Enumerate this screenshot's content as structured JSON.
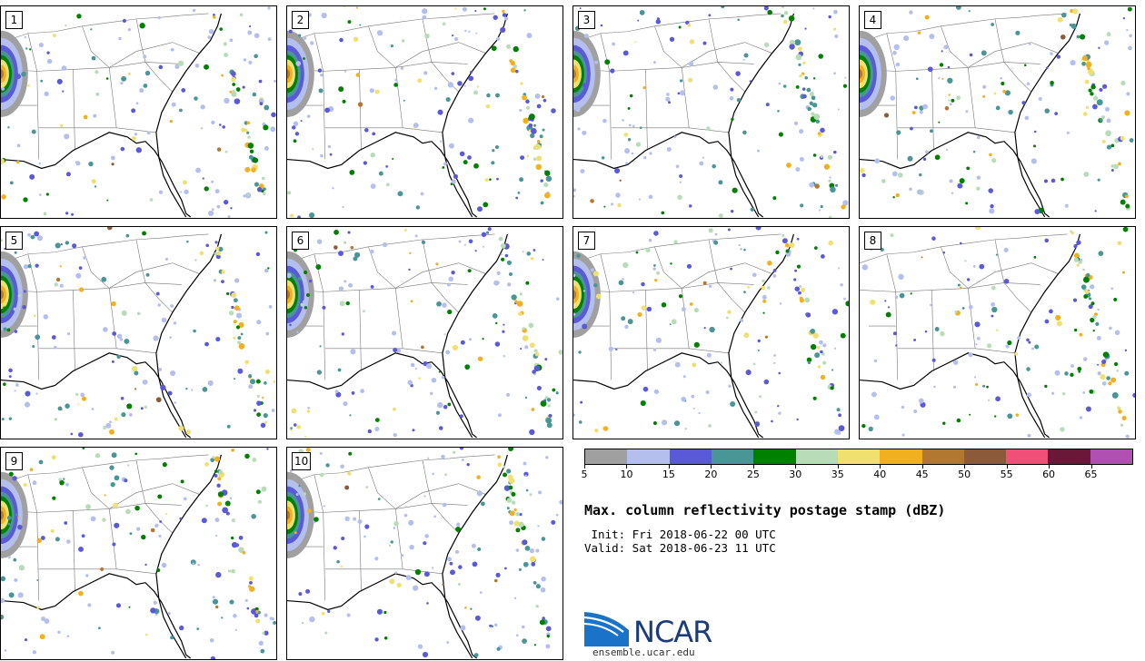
{
  "panels": [
    {
      "label": "1"
    },
    {
      "label": "2"
    },
    {
      "label": "3"
    },
    {
      "label": "4"
    },
    {
      "label": "5"
    },
    {
      "label": "6"
    },
    {
      "label": "7"
    },
    {
      "label": "8"
    },
    {
      "label": "9"
    },
    {
      "label": "10"
    }
  ],
  "colorbar": {
    "ticks": [
      "5",
      "10",
      "15",
      "20",
      "25",
      "30",
      "35",
      "40",
      "45",
      "50",
      "55",
      "60",
      "65"
    ],
    "colors": [
      "#a0a0a0",
      "#b4bfee",
      "#5a5ad8",
      "#4a9696",
      "#008000",
      "#b8dcb8",
      "#f0e070",
      "#f0b020",
      "#b07830",
      "#8a5a3a",
      "#f05078",
      "#6a1838",
      "#b050b0"
    ]
  },
  "title": "Max. column reflectivity postage stamp (dBZ)",
  "init": " Init: Fri 2018-06-22 00 UTC",
  "valid": "Valid: Sat 2018-06-23 11 UTC",
  "logo": {
    "text": "NCAR",
    "site": "ensemble.ucar.edu"
  }
}
